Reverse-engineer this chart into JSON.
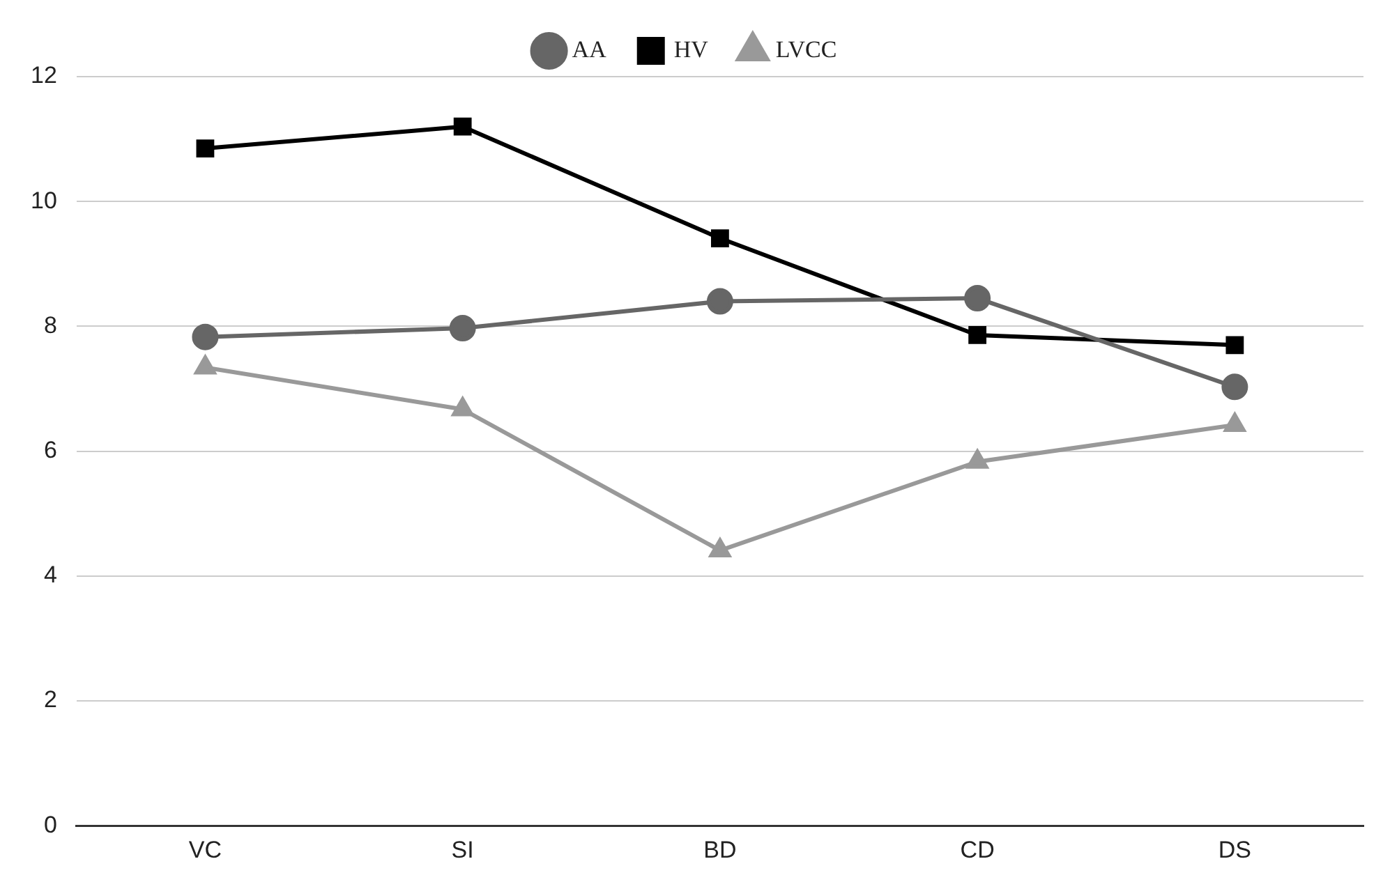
{
  "chart_data": {
    "type": "line",
    "categories": [
      "VC",
      "SI",
      "BD",
      "CD",
      "DS"
    ],
    "series": [
      {
        "name": "AA",
        "color": "#666666",
        "marker": "circle",
        "values": [
          7.83,
          7.97,
          8.4,
          8.45,
          7.03
        ]
      },
      {
        "name": "HV",
        "color": "#000000",
        "marker": "square",
        "values": [
          10.85,
          11.2,
          9.41,
          7.86,
          7.7
        ]
      },
      {
        "name": "LVCC",
        "color": "#999999",
        "marker": "triangle",
        "values": [
          7.34,
          6.67,
          4.41,
          5.83,
          6.42
        ]
      }
    ],
    "ylim": [
      0,
      12
    ],
    "yticks": [
      0,
      2,
      4,
      6,
      8,
      10,
      12
    ],
    "grid": "y",
    "legend": "top"
  }
}
